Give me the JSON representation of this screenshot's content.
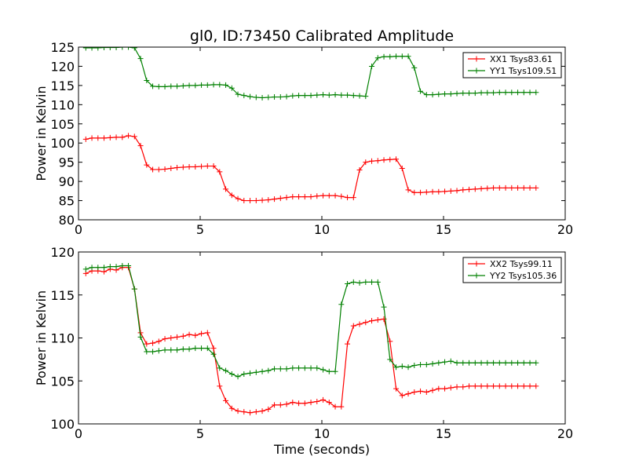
{
  "chart_data": [
    {
      "type": "line",
      "title": "gl0, ID:73450 Calibrated Amplitude",
      "xlabel": "",
      "ylabel": "Power in Kelvin",
      "xlim": [
        0,
        20
      ],
      "ylim": [
        80,
        125
      ],
      "xticks": [
        0,
        5,
        10,
        15,
        20
      ],
      "yticks": [
        80,
        85,
        90,
        95,
        100,
        105,
        110,
        115,
        120,
        125
      ],
      "grid": false,
      "legend": "top-right",
      "marker": "+",
      "x": [
        0.3,
        0.55,
        0.8,
        1.05,
        1.3,
        1.55,
        1.8,
        2.05,
        2.3,
        2.55,
        2.8,
        3.05,
        3.3,
        3.55,
        3.8,
        4.05,
        4.3,
        4.55,
        4.8,
        5.05,
        5.3,
        5.55,
        5.8,
        6.05,
        6.3,
        6.55,
        6.8,
        7.05,
        7.3,
        7.55,
        7.8,
        8.05,
        8.3,
        8.55,
        8.8,
        9.05,
        9.3,
        9.55,
        9.8,
        10.05,
        10.3,
        10.55,
        10.8,
        11.05,
        11.3,
        11.55,
        11.8,
        12.05,
        12.3,
        12.55,
        12.8,
        13.05,
        13.3,
        13.55,
        13.8,
        14.05,
        14.3,
        14.55,
        14.8,
        15.05,
        15.3,
        15.55,
        15.8,
        16.05,
        16.3,
        16.55,
        16.8,
        17.05,
        17.3,
        17.55,
        17.8,
        18.05,
        18.3,
        18.55,
        18.8
      ],
      "series": [
        {
          "name": "XX1 Tsys83.61",
          "color": "#ff0000",
          "values": [
            101.0,
            101.3,
            101.3,
            101.3,
            101.4,
            101.5,
            101.5,
            101.9,
            101.7,
            99.3,
            94.3,
            93.1,
            93.1,
            93.2,
            93.4,
            93.6,
            93.7,
            93.8,
            93.8,
            93.9,
            94.0,
            94.0,
            92.5,
            88.0,
            86.4,
            85.5,
            85.0,
            85.0,
            85.0,
            85.1,
            85.2,
            85.4,
            85.6,
            85.8,
            86.0,
            86.0,
            86.0,
            86.0,
            86.2,
            86.3,
            86.3,
            86.3,
            86.1,
            85.8,
            85.8,
            93.0,
            95.0,
            95.3,
            95.4,
            95.6,
            95.7,
            95.8,
            93.4,
            87.8,
            87.1,
            87.1,
            87.2,
            87.3,
            87.3,
            87.4,
            87.5,
            87.6,
            87.8,
            87.9,
            88.0,
            88.1,
            88.2,
            88.3,
            88.3,
            88.3,
            88.3,
            88.3,
            88.3,
            88.3,
            88.3
          ]
        },
        {
          "name": "YY1 Tsys109.51",
          "color": "#008000",
          "values": [
            124.8,
            124.8,
            124.8,
            124.9,
            124.9,
            124.9,
            125.0,
            125.0,
            124.8,
            122.0,
            116.3,
            114.8,
            114.7,
            114.7,
            114.8,
            114.8,
            114.9,
            115.0,
            115.0,
            115.1,
            115.1,
            115.2,
            115.2,
            115.1,
            114.3,
            112.7,
            112.4,
            112.1,
            111.9,
            111.8,
            111.9,
            112.0,
            112.0,
            112.1,
            112.3,
            112.4,
            112.4,
            112.4,
            112.5,
            112.6,
            112.5,
            112.6,
            112.5,
            112.5,
            112.4,
            112.3,
            112.2,
            120.0,
            122.2,
            122.5,
            122.5,
            122.6,
            122.6,
            122.6,
            119.6,
            113.5,
            112.6,
            112.6,
            112.7,
            112.8,
            112.8,
            112.9,
            113.0,
            113.0,
            113.0,
            113.1,
            113.1,
            113.1,
            113.2,
            113.2,
            113.2,
            113.2,
            113.2,
            113.2,
            113.2
          ]
        }
      ]
    },
    {
      "type": "line",
      "title": "",
      "xlabel": "Time (seconds)",
      "ylabel": "Power in Kelvin",
      "xlim": [
        0,
        20
      ],
      "ylim": [
        100,
        120
      ],
      "xticks": [
        0,
        5,
        10,
        15,
        20
      ],
      "yticks": [
        100,
        105,
        110,
        115,
        120
      ],
      "grid": false,
      "legend": "top-right",
      "marker": "+",
      "x": [
        0.3,
        0.55,
        0.8,
        1.05,
        1.3,
        1.55,
        1.8,
        2.05,
        2.3,
        2.55,
        2.8,
        3.05,
        3.3,
        3.55,
        3.8,
        4.05,
        4.3,
        4.55,
        4.8,
        5.05,
        5.3,
        5.55,
        5.8,
        6.05,
        6.3,
        6.55,
        6.8,
        7.05,
        7.3,
        7.55,
        7.8,
        8.05,
        8.3,
        8.55,
        8.8,
        9.05,
        9.3,
        9.55,
        9.8,
        10.05,
        10.3,
        10.55,
        10.8,
        11.05,
        11.3,
        11.55,
        11.8,
        12.05,
        12.3,
        12.55,
        12.8,
        13.05,
        13.3,
        13.55,
        13.8,
        14.05,
        14.3,
        14.55,
        14.8,
        15.05,
        15.3,
        15.55,
        15.8,
        16.05,
        16.3,
        16.55,
        16.8,
        17.05,
        17.3,
        17.55,
        17.8,
        18.05,
        18.3,
        18.55,
        18.8
      ],
      "series": [
        {
          "name": "XX2 Tsys99.11",
          "color": "#ff0000",
          "values": [
            117.5,
            117.8,
            117.8,
            117.7,
            118.0,
            117.9,
            118.2,
            118.2,
            115.7,
            110.6,
            109.3,
            109.4,
            109.6,
            109.9,
            110.0,
            110.1,
            110.2,
            110.4,
            110.3,
            110.5,
            110.6,
            108.8,
            104.4,
            102.7,
            101.8,
            101.5,
            101.4,
            101.3,
            101.4,
            101.5,
            101.7,
            102.2,
            102.2,
            102.3,
            102.5,
            102.4,
            102.4,
            102.5,
            102.6,
            102.8,
            102.5,
            102.0,
            102.0,
            109.3,
            111.4,
            111.6,
            111.8,
            112.0,
            112.1,
            112.2,
            109.6,
            104.1,
            103.3,
            103.5,
            103.7,
            103.8,
            103.7,
            103.9,
            104.1,
            104.1,
            104.2,
            104.3,
            104.3,
            104.4,
            104.4,
            104.4,
            104.4,
            104.4,
            104.4,
            104.4,
            104.4,
            104.4,
            104.4,
            104.4,
            104.4
          ]
        },
        {
          "name": "YY2 Tsys105.36",
          "color": "#008000",
          "values": [
            118.0,
            118.2,
            118.2,
            118.2,
            118.3,
            118.3,
            118.4,
            118.4,
            115.7,
            110.1,
            108.4,
            108.4,
            108.5,
            108.6,
            108.6,
            108.6,
            108.7,
            108.7,
            108.8,
            108.8,
            108.8,
            108.1,
            106.5,
            106.2,
            105.8,
            105.5,
            105.8,
            105.9,
            106.0,
            106.1,
            106.2,
            106.4,
            106.4,
            106.4,
            106.5,
            106.5,
            106.5,
            106.5,
            106.5,
            106.3,
            106.1,
            106.1,
            113.9,
            116.3,
            116.5,
            116.4,
            116.5,
            116.5,
            116.5,
            113.6,
            107.5,
            106.6,
            106.7,
            106.6,
            106.8,
            106.9,
            106.9,
            107.0,
            107.1,
            107.2,
            107.3,
            107.1,
            107.1,
            107.1,
            107.1,
            107.1,
            107.1,
            107.1,
            107.1,
            107.1,
            107.1,
            107.1,
            107.1,
            107.1,
            107.1
          ]
        }
      ]
    }
  ]
}
